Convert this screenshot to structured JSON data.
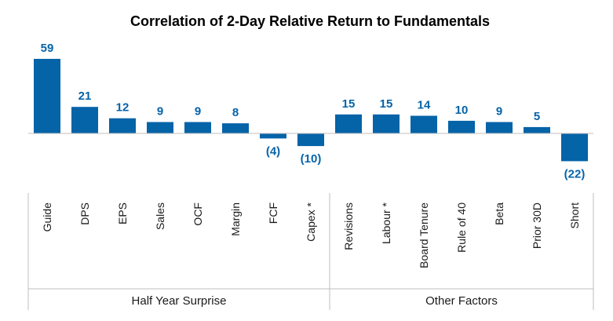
{
  "chart_data": {
    "type": "bar",
    "title": "Correlation of 2-Day Relative Return to Fundamentals",
    "xlabel": "",
    "ylabel": "",
    "categories": [
      "Guide",
      "DPS",
      "EPS",
      "Sales",
      "OCF",
      "Margin",
      "FCF",
      "Capex *",
      "Revisions",
      "Labour *",
      "Board Tenure",
      "Rule of 40",
      "Beta",
      "Prior 30D",
      "Short"
    ],
    "values": [
      59,
      21,
      12,
      9,
      9,
      8,
      -4,
      -10,
      15,
      15,
      14,
      10,
      9,
      5,
      -22
    ],
    "value_labels": [
      "59",
      "21",
      "12",
      "9",
      "9",
      "8",
      "(4)",
      "(10)",
      "15",
      "15",
      "14",
      "10",
      "9",
      "5",
      "(22)"
    ],
    "groups": [
      {
        "label": "Half Year Surprise",
        "count": 8
      },
      {
        "label": "Other Factors",
        "count": 7
      }
    ],
    "bar_color": "#0563A8",
    "label_color": "#0563A8",
    "grid": false,
    "legend": "none"
  }
}
